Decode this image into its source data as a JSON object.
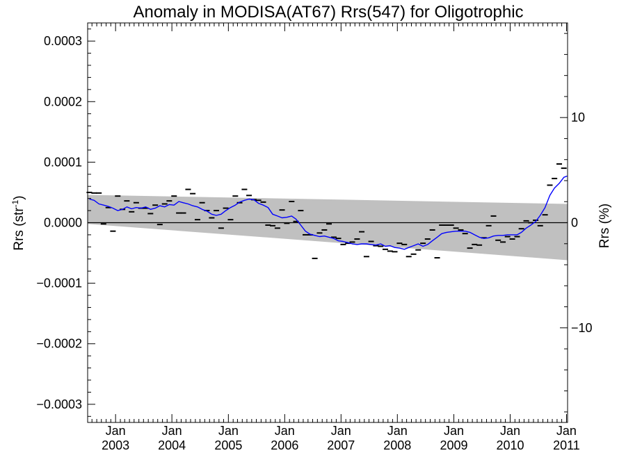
{
  "chart_data": {
    "type": "line",
    "title": "Anomaly in MODISA(AT67) Rrs(547) for Oligotrophic",
    "ylabel": "Rrs (str",
    "ylabel_sup": "-1",
    "ylabel_close": ")",
    "y2label": "Rrs (%)",
    "ylim": [
      -0.00033,
      0.00033
    ],
    "y2lim": [
      -19,
      19
    ],
    "yticks": [
      {
        "value": -0.0003,
        "label": "−0.0003"
      },
      {
        "value": -0.0002,
        "label": "−0.0002"
      },
      {
        "value": -0.0001,
        "label": "−0.0001"
      },
      {
        "value": 0,
        "label": "0.0000"
      },
      {
        "value": 0.0001,
        "label": "0.0001"
      },
      {
        "value": 0.0002,
        "label": "0.0002"
      },
      {
        "value": 0.0003,
        "label": "0.0003"
      }
    ],
    "y2ticks": [
      {
        "value": -10,
        "label": "−10"
      },
      {
        "value": 0,
        "label": "0"
      },
      {
        "value": 10,
        "label": "10"
      }
    ],
    "xlim": [
      "2002-07-04",
      "2011-01-08"
    ],
    "xticks": [
      {
        "date": "2003-01-01",
        "month": "Jan",
        "year": "2003"
      },
      {
        "date": "2004-01-01",
        "month": "Jan",
        "year": "2004"
      },
      {
        "date": "2005-01-01",
        "month": "Jan",
        "year": "2005"
      },
      {
        "date": "2006-01-01",
        "month": "Jan",
        "year": "2006"
      },
      {
        "date": "2007-01-01",
        "month": "Jan",
        "year": "2007"
      },
      {
        "date": "2008-01-01",
        "month": "Jan",
        "year": "2008"
      },
      {
        "date": "2009-01-01",
        "month": "Jan",
        "year": "2009"
      },
      {
        "date": "2010-01-01",
        "month": "Jan",
        "year": "2010"
      },
      {
        "date": "2011-01-01",
        "month": "Jan",
        "year": "2011"
      }
    ],
    "uncertainty_band": {
      "color": "#c0c0c0",
      "start": {
        "date": "2002-07-04",
        "upper": 4.6e-05,
        "lower": -2e-06
      },
      "end": {
        "date": "2011-01-08",
        "upper": 3.1e-05,
        "lower": -6.2e-05
      }
    },
    "zero_line": {
      "value": 0,
      "color": "#000000"
    },
    "colors": {
      "anomaly": "#000000",
      "running_mean": "#0000ff",
      "band": "#c0c0c0"
    },
    "series": [
      {
        "style": "dash-marker",
        "color": "#000000",
        "x": [
          "2002-07-15",
          "2002-08-15",
          "2002-09-15",
          "2002-10-15",
          "2002-11-15",
          "2002-12-15",
          "2003-01-15",
          "2003-02-15",
          "2003-03-15",
          "2003-04-15",
          "2003-05-15",
          "2003-06-15",
          "2003-07-15",
          "2003-08-15",
          "2003-09-15",
          "2003-10-15",
          "2003-11-15",
          "2003-12-15",
          "2004-01-15",
          "2004-02-15",
          "2004-03-15",
          "2004-04-15",
          "2004-05-15",
          "2004-06-15",
          "2004-07-15",
          "2004-08-15",
          "2004-09-15",
          "2004-10-15",
          "2004-11-15",
          "2004-12-15",
          "2005-01-15",
          "2005-02-15",
          "2005-03-15",
          "2005-04-15",
          "2005-05-15",
          "2005-06-15",
          "2005-07-15",
          "2005-08-15",
          "2005-09-15",
          "2005-10-15",
          "2005-11-15",
          "2005-12-15",
          "2006-01-15",
          "2006-02-15",
          "2006-03-15",
          "2006-04-15",
          "2006-05-15",
          "2006-06-15",
          "2006-07-15",
          "2006-08-15",
          "2006-09-15",
          "2006-10-15",
          "2006-11-15",
          "2006-12-15",
          "2007-01-15",
          "2007-02-15",
          "2007-03-15",
          "2007-04-15",
          "2007-05-15",
          "2007-06-15",
          "2007-07-15",
          "2007-08-15",
          "2007-09-15",
          "2007-10-15",
          "2007-11-15",
          "2007-12-15",
          "2008-01-15",
          "2008-02-15",
          "2008-03-15",
          "2008-04-15",
          "2008-05-15",
          "2008-06-15",
          "2008-07-15",
          "2008-08-15",
          "2008-09-15",
          "2008-10-15",
          "2008-11-15",
          "2008-12-15",
          "2009-01-15",
          "2009-02-15",
          "2009-03-15",
          "2009-04-15",
          "2009-05-15",
          "2009-06-15",
          "2009-07-15",
          "2009-08-15",
          "2009-09-15",
          "2009-10-15",
          "2009-11-15",
          "2009-12-15",
          "2010-01-15",
          "2010-02-15",
          "2010-03-15",
          "2010-04-15",
          "2010-05-15",
          "2010-06-15",
          "2010-07-15",
          "2010-08-15",
          "2010-09-15",
          "2010-10-15",
          "2010-11-15",
          "2010-12-15"
        ],
        "y": [
          5e-05,
          4.9e-05,
          4.9e-05,
          -2e-06,
          2.5e-05,
          -1.4e-05,
          4.4e-05,
          2.2e-05,
          3.6e-05,
          1.8e-05,
          3.3e-05,
          2.4e-05,
          2.4e-05,
          1.5e-05,
          2.9e-05,
          -3e-06,
          3.1e-05,
          3.6e-05,
          4.4e-05,
          1.6e-05,
          1.6e-05,
          5.5e-05,
          4.8e-05,
          5e-06,
          3.3e-05,
          2e-05,
          8e-06,
          2e-05,
          -9e-06,
          2.4e-05,
          5e-06,
          4.4e-05,
          3.3e-05,
          5.5e-05,
          4.5e-05,
          3.8e-05,
          3.7e-05,
          3.4e-05,
          -4e-06,
          -5e-06,
          -9e-06,
          2.1e-05,
          -1e-06,
          3.5e-05,
          2e-06,
          2e-05,
          -2e-05,
          -2e-05,
          -5.9e-05,
          -1.7e-05,
          -1.2e-05,
          -2e-06,
          -2.4e-05,
          -2.6e-05,
          -3.6e-05,
          -3.4e-05,
          -3.2e-05,
          -2.7e-05,
          -1.5e-05,
          -5.6e-05,
          -3.1e-05,
          -3.8e-05,
          -3.9e-05,
          -4.4e-05,
          -4.7e-05,
          -4.8e-05,
          -3.4e-05,
          -3.6e-05,
          -5.6e-05,
          -5.2e-05,
          -4.5e-05,
          -3.4e-05,
          -2.7e-05,
          -1.2e-05,
          -5.8e-05,
          -4e-06,
          -4e-06,
          -4e-06,
          -9e-06,
          -1.2e-05,
          -1.8e-05,
          -4.2e-05,
          -3.6e-05,
          -3.7e-05,
          -2.5e-05,
          -5e-06,
          1.1e-05,
          -2.9e-05,
          -3.2e-05,
          -2.3e-05,
          -2.7e-05,
          -2.3e-05,
          -1e-05,
          3e-06,
          0.0,
          4e-06,
          -5e-06,
          1.3e-05,
          6.2e-05,
          7.3e-05,
          9.7e-05,
          9e-05
        ]
      },
      {
        "style": "line",
        "color": "#0000ff",
        "x": [
          "2002-07-15",
          "2002-08-15",
          "2002-09-15",
          "2002-10-15",
          "2002-11-15",
          "2002-12-15",
          "2003-01-15",
          "2003-02-15",
          "2003-03-15",
          "2003-04-15",
          "2003-05-15",
          "2003-06-15",
          "2003-07-15",
          "2003-08-15",
          "2003-09-15",
          "2003-10-15",
          "2003-11-15",
          "2003-12-15",
          "2004-01-15",
          "2004-02-15",
          "2004-03-15",
          "2004-04-15",
          "2004-05-15",
          "2004-06-15",
          "2004-07-15",
          "2004-08-15",
          "2004-09-15",
          "2004-10-15",
          "2004-11-15",
          "2004-12-15",
          "2005-01-15",
          "2005-02-15",
          "2005-03-15",
          "2005-04-15",
          "2005-05-15",
          "2005-06-15",
          "2005-07-15",
          "2005-08-15",
          "2005-09-15",
          "2005-10-15",
          "2005-11-15",
          "2005-12-15",
          "2006-01-15",
          "2006-02-15",
          "2006-03-15",
          "2006-04-15",
          "2006-05-15",
          "2006-06-15",
          "2006-07-15",
          "2006-08-15",
          "2006-09-15",
          "2006-10-15",
          "2006-11-15",
          "2006-12-15",
          "2007-01-15",
          "2007-02-15",
          "2007-03-15",
          "2007-04-15",
          "2007-05-15",
          "2007-06-15",
          "2007-07-15",
          "2007-08-15",
          "2007-09-15",
          "2007-10-15",
          "2007-11-15",
          "2007-12-15",
          "2008-01-15",
          "2008-02-15",
          "2008-03-15",
          "2008-04-15",
          "2008-05-15",
          "2008-06-15",
          "2008-07-15",
          "2008-08-15",
          "2008-09-15",
          "2008-10-15",
          "2008-11-15",
          "2008-12-15",
          "2009-01-15",
          "2009-02-15",
          "2009-03-15",
          "2009-04-15",
          "2009-05-15",
          "2009-06-15",
          "2009-07-15",
          "2009-08-15",
          "2009-09-15",
          "2009-10-15",
          "2009-11-15",
          "2009-12-15",
          "2010-01-15",
          "2010-02-15",
          "2010-03-15",
          "2010-04-15",
          "2010-05-15",
          "2010-06-15",
          "2010-07-15",
          "2010-08-15",
          "2010-09-15",
          "2010-10-15",
          "2010-11-15",
          "2010-12-15",
          "2011-01-05"
        ],
        "y": [
          3.9e-05,
          3.7e-05,
          3.1e-05,
          2.9e-05,
          2.7e-05,
          2.4e-05,
          2e-05,
          2.2e-05,
          2.6e-05,
          2.3e-05,
          2.5e-05,
          2.4e-05,
          2.6e-05,
          2.2e-05,
          2.4e-05,
          2.8e-05,
          2.6e-05,
          3e-05,
          2.9e-05,
          3.5e-05,
          3.3e-05,
          3.1e-05,
          2.8e-05,
          2.6e-05,
          2.2e-05,
          1.9e-05,
          1.4e-05,
          1.2e-05,
          1.4e-05,
          2e-05,
          2.5e-05,
          2.9e-05,
          3.4e-05,
          3.7e-05,
          3.9e-05,
          3.8e-05,
          3.2e-05,
          2.9e-05,
          2.5e-05,
          1.4e-05,
          1.1e-05,
          8e-06,
          9e-06,
          1.1e-05,
          6e-06,
          -4e-06,
          -1.4e-05,
          -1.9e-05,
          -2.1e-05,
          -2.3e-05,
          -2.2e-05,
          -2.4e-05,
          -2.6e-05,
          -3e-05,
          -3.1e-05,
          -3.3e-05,
          -3.5e-05,
          -3.6e-05,
          -3.5e-05,
          -3.5e-05,
          -3.6e-05,
          -3.7e-05,
          -3.5e-05,
          -3.9e-05,
          -3.8e-05,
          -4.1e-05,
          -4.2e-05,
          -4.4e-05,
          -4.1e-05,
          -3.8e-05,
          -3.5e-05,
          -3.9e-05,
          -3.6e-05,
          -3e-05,
          -2.4e-05,
          -1.8e-05,
          -1.6e-05,
          -1.5e-05,
          -1.4e-05,
          -1.4e-05,
          -1.4e-05,
          -1.6e-05,
          -2e-05,
          -2.4e-05,
          -2.6e-05,
          -2.5e-05,
          -2.2e-05,
          -2.1e-05,
          -2.1e-05,
          -2e-05,
          -2e-05,
          -2e-05,
          -1.6e-05,
          -9e-06,
          -4e-06,
          2e-06,
          1.2e-05,
          2.5e-05,
          4.5e-05,
          5.7e-05,
          6.5e-05,
          7.5e-05,
          7.7e-05
        ]
      }
    ]
  }
}
